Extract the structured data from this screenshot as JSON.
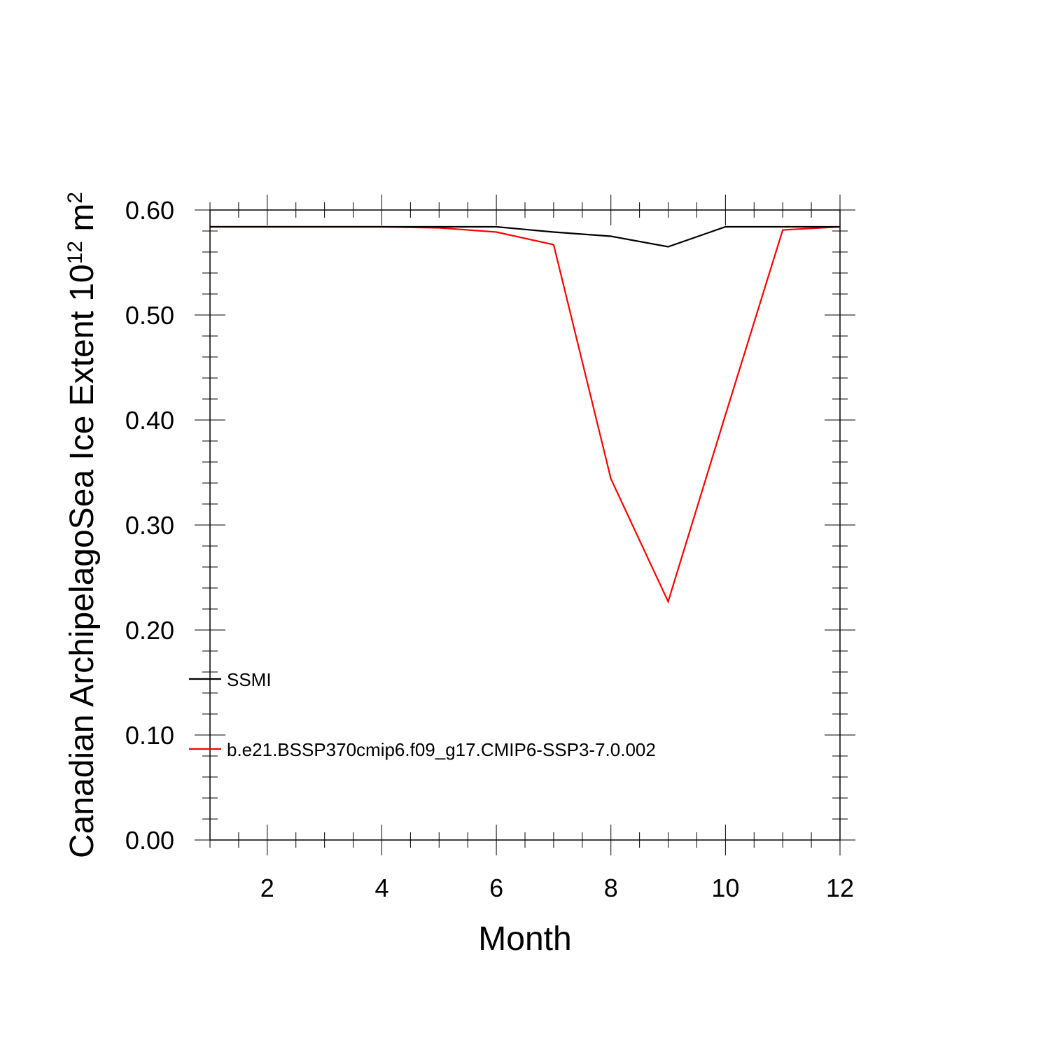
{
  "chart_data": {
    "type": "line",
    "xlabel": "Month",
    "ylabel": {
      "prefix": "Canadian ArchipelagoSea Ice Extent 10",
      "exp1": "12",
      "mid": " m",
      "exp2": "2"
    },
    "xlim": [
      1,
      12
    ],
    "ylim": [
      0,
      0.6
    ],
    "x_ticks": [
      2,
      4,
      6,
      8,
      10,
      12
    ],
    "x_tick_labels": [
      "2",
      "4",
      "6",
      "8",
      "10",
      "12"
    ],
    "y_ticks": [
      0,
      0.1,
      0.2,
      0.3,
      0.4,
      0.5,
      0.6
    ],
    "y_tick_labels": [
      "0.00",
      "0.10",
      "0.20",
      "0.30",
      "0.40",
      "0.50",
      "0.60"
    ],
    "grid": false,
    "legend_position": "lower-left",
    "x": [
      1,
      2,
      3,
      4,
      5,
      6,
      7,
      8,
      9,
      10,
      11,
      12
    ],
    "series": [
      {
        "name": "SSMI",
        "color": "#000000",
        "values": [
          0.584,
          0.584,
          0.584,
          0.584,
          0.584,
          0.584,
          0.579,
          0.575,
          0.565,
          0.584,
          0.584,
          0.584
        ]
      },
      {
        "name": "b.e21.BSSP370cmip6.f09_g17.CMIP6-SSP3-7.0.002",
        "color": "#ff0000",
        "values": [
          0.584,
          0.584,
          0.584,
          0.584,
          0.583,
          0.579,
          0.567,
          0.344,
          0.227,
          0.405,
          0.581,
          0.584
        ]
      }
    ]
  }
}
